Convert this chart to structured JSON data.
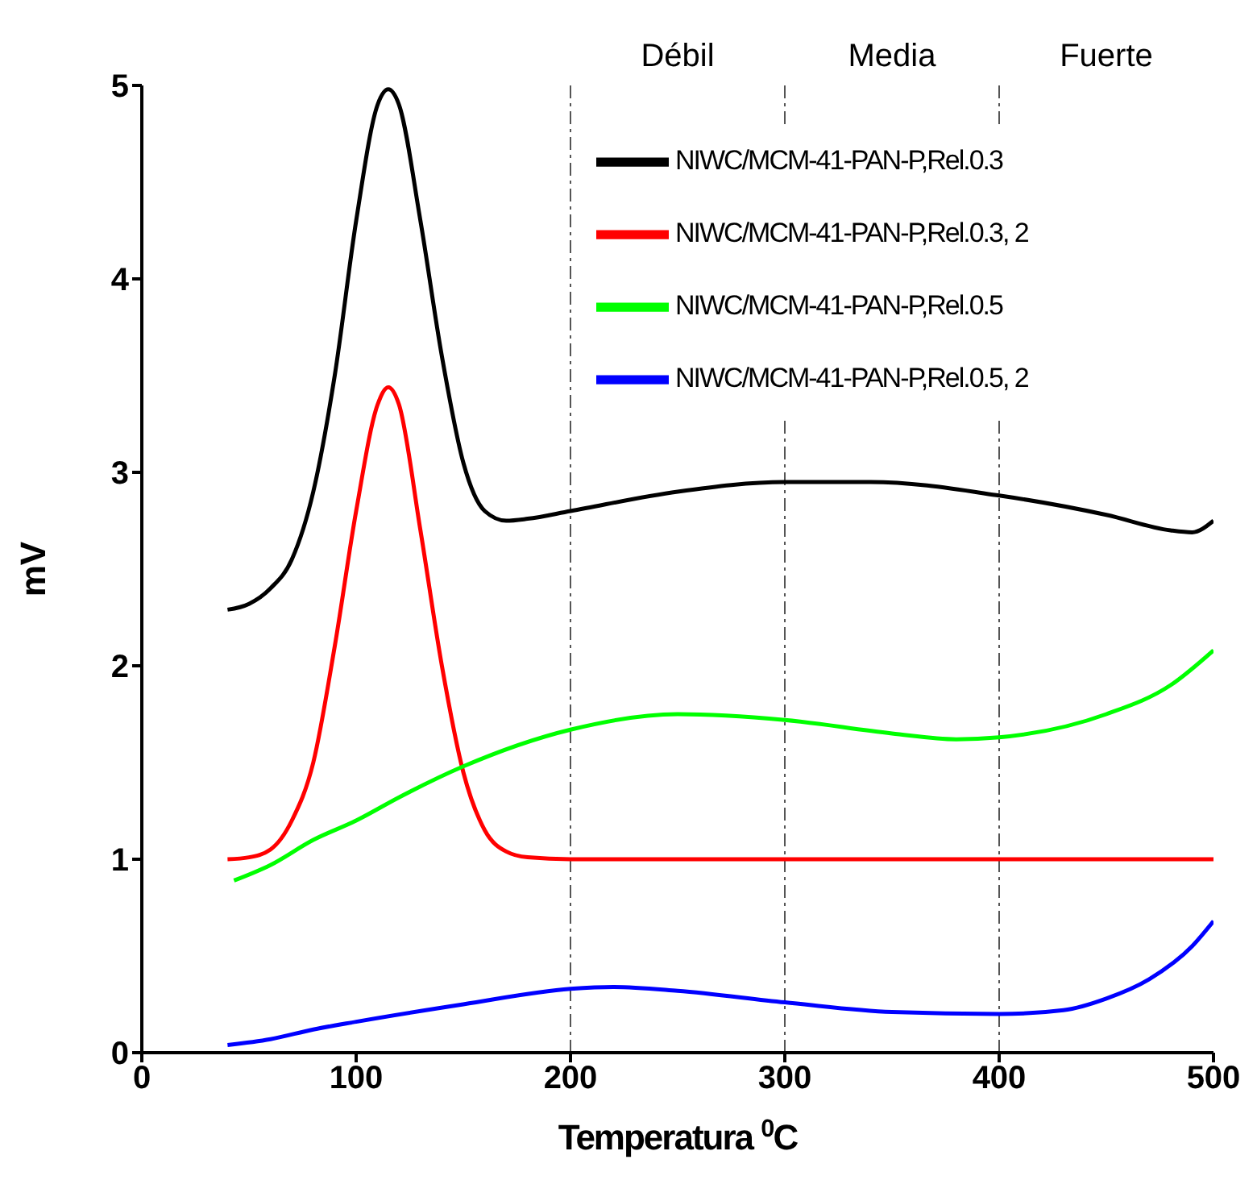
{
  "chart_data": {
    "type": "line",
    "xlabel": "Temperatura $^{0}$C",
    "ylabel": "mV",
    "xlim": [
      0,
      500
    ],
    "xticks": [
      0,
      100,
      200,
      300,
      400,
      500
    ],
    "ylim": [
      0,
      5
    ],
    "yticks": [
      0,
      1,
      2,
      3,
      4,
      5
    ],
    "grid": false,
    "legend": "top right",
    "marker": "none",
    "line_style": "solid",
    "ref_lines": [
      {
        "axis": "x",
        "value": 200,
        "line_style": "dashdot"
      },
      {
        "axis": "x",
        "value": 300,
        "line_style": "dashdot"
      },
      {
        "axis": "x",
        "value": 400,
        "line_style": "dashdot"
      }
    ],
    "annotations": [
      "Débil",
      "Media",
      "Fuerte"
    ],
    "series": [
      {
        "name": "NIWC/MCM-41-PAN-P,Rel.0.3",
        "color": "#000000",
        "x": [
          40,
          50,
          60,
          70,
          80,
          90,
          100,
          110,
          115,
          120,
          130,
          140,
          150,
          160,
          170,
          180,
          200,
          250,
          300,
          340,
          400,
          450,
          480,
          490,
          500
        ],
        "values": [
          2.29,
          2.32,
          2.4,
          2.55,
          2.9,
          3.5,
          4.3,
          4.9,
          4.98,
          4.9,
          4.3,
          3.6,
          3.05,
          2.8,
          2.75,
          2.76,
          2.8,
          2.9,
          2.95,
          2.95,
          2.88,
          2.78,
          2.7,
          2.69,
          2.75
        ]
      },
      {
        "name": "NIWC/MCM-41-PAN-P,Rel.0.3, 2",
        "color": "#ff0000",
        "x": [
          40,
          50,
          60,
          70,
          80,
          90,
          100,
          110,
          115,
          120,
          130,
          140,
          150,
          160,
          170,
          180,
          200,
          300,
          400,
          500
        ],
        "values": [
          1.0,
          1.01,
          1.05,
          1.2,
          1.5,
          2.1,
          2.8,
          3.35,
          3.44,
          3.35,
          2.7,
          2.0,
          1.45,
          1.15,
          1.04,
          1.01,
          1.0,
          1.0,
          1.0,
          1.0
        ]
      },
      {
        "name": "NIWC/MCM-41-PAN-P,Rel.0.5",
        "color": "#00ff00",
        "x": [
          43,
          60,
          80,
          100,
          120,
          150,
          200,
          250,
          300,
          350,
          380,
          400,
          450,
          480,
          500
        ],
        "values": [
          0.89,
          0.97,
          1.1,
          1.2,
          1.32,
          1.48,
          1.67,
          1.75,
          1.72,
          1.65,
          1.62,
          1.63,
          1.75,
          1.9,
          2.08
        ]
      },
      {
        "name": "NIWC/MCM-41-PAN-P,Rel.0.5, 2",
        "color": "#0000ff",
        "x": [
          40,
          60,
          80,
          100,
          150,
          200,
          220,
          250,
          300,
          350,
          400,
          430,
          450,
          470,
          490,
          500
        ],
        "values": [
          0.04,
          0.07,
          0.12,
          0.16,
          0.25,
          0.33,
          0.34,
          0.32,
          0.26,
          0.21,
          0.2,
          0.22,
          0.28,
          0.38,
          0.55,
          0.68
        ]
      }
    ]
  }
}
